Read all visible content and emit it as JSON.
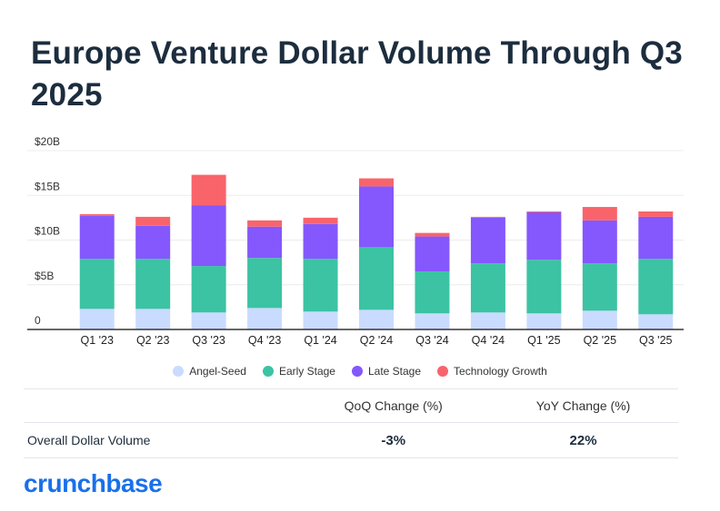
{
  "title": "Europe Venture Dollar Volume Through Q3 2025",
  "chart_data": {
    "type": "bar",
    "stacked": true,
    "title": "Europe Venture Dollar Volume Through Q3 2025",
    "categories": [
      "Q1 '23",
      "Q2 '23",
      "Q3 '23",
      "Q4 '23",
      "Q1 '24",
      "Q2 '24",
      "Q3 '24",
      "Q4 '24",
      "Q1 '25",
      "Q2 '25",
      "Q3 '25"
    ],
    "y_ticks": [
      0,
      5,
      10,
      15,
      20
    ],
    "y_tick_labels": [
      "0",
      "$5B",
      "$10B",
      "$15B",
      "$20B"
    ],
    "ylim": [
      0,
      20
    ],
    "unit": "$B",
    "series": [
      {
        "name": "Angel-Seed",
        "color": "#c9dbff",
        "values": [
          2.3,
          2.3,
          1.9,
          2.4,
          2.0,
          2.2,
          1.8,
          1.9,
          1.8,
          2.1,
          1.7
        ]
      },
      {
        "name": "Early Stage",
        "color": "#3cc3a3",
        "values": [
          5.6,
          5.6,
          5.2,
          5.6,
          5.9,
          7.0,
          4.7,
          5.5,
          6.0,
          5.3,
          6.2
        ]
      },
      {
        "name": "Late Stage",
        "color": "#8458fd",
        "values": [
          4.8,
          3.7,
          6.8,
          3.5,
          3.9,
          6.8,
          3.9,
          5.1,
          5.3,
          4.8,
          4.7
        ]
      },
      {
        "name": "Technology Growth",
        "color": "#f9646b",
        "values": [
          0.2,
          1.0,
          3.4,
          0.7,
          0.7,
          0.9,
          0.4,
          0.1,
          0.1,
          1.5,
          0.6
        ]
      }
    ]
  },
  "stats": {
    "qoq_header": "QoQ Change (%)",
    "yoy_header": "YoY Change (%)",
    "row_label": "Overall Dollar Volume",
    "qoq_value": "-3%",
    "yoy_value": "22%"
  },
  "brand": "crunchbase"
}
